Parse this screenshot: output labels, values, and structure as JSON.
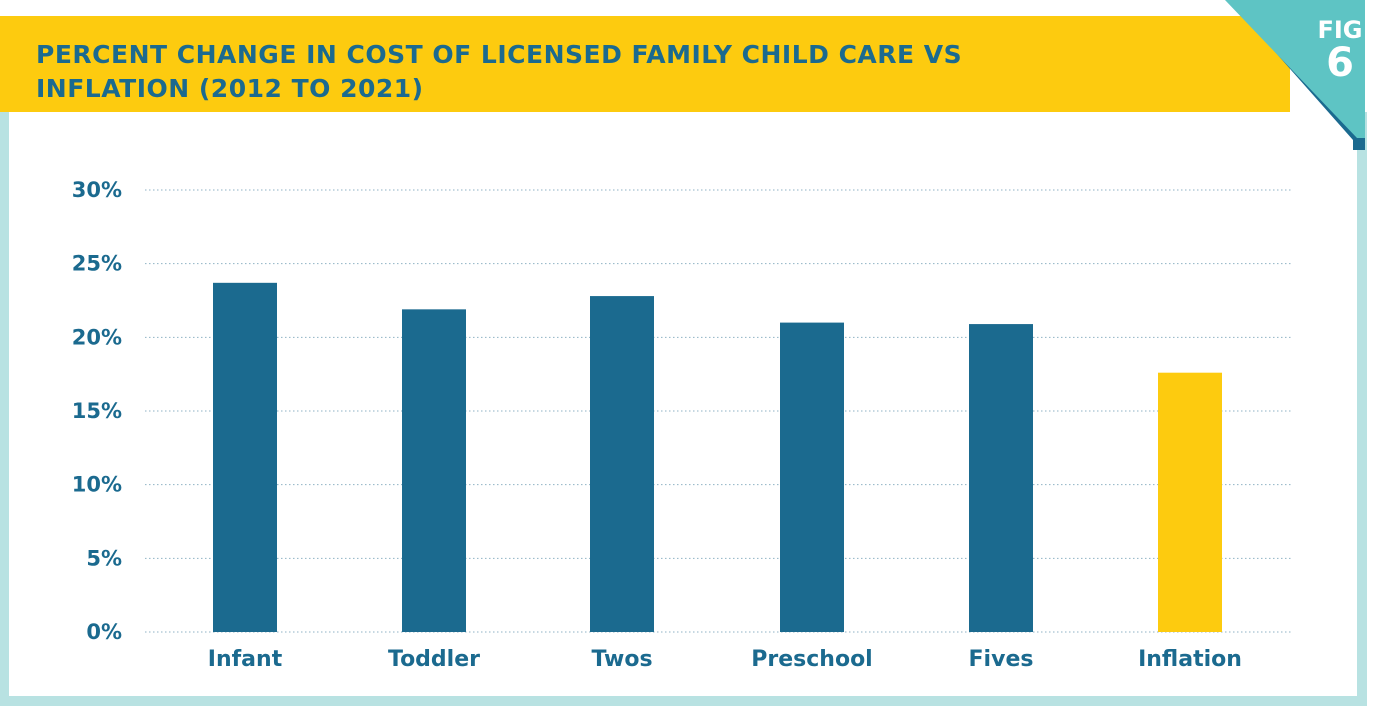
{
  "figure": {
    "label": "FIG",
    "number": "6"
  },
  "colors": {
    "banner": "#fdcb0f",
    "title_text": "#1b6a8f",
    "tab": "#5ec4c4",
    "tab_shadow": "#1b6a8f",
    "frame": "#b8e2e2",
    "bar_primary": "#1b6a8f",
    "bar_highlight": "#fdcb0f",
    "grid": "#8fb2c4"
  },
  "chart_data": {
    "type": "bar",
    "title": "PERCENT CHANGE IN COST OF LICENSED FAMILY CHILD CARE VS INFLATION (2012 TO 2021)",
    "xlabel": "",
    "ylabel": "",
    "categories": [
      "Infant",
      "Toddler",
      "Twos",
      "Preschool",
      "Fives",
      "Inflation"
    ],
    "values": [
      23.7,
      21.9,
      22.8,
      21.0,
      20.9,
      17.6
    ],
    "highlight_category": "Inflation",
    "ylim": [
      0,
      30
    ],
    "yticks": [
      0,
      5,
      10,
      15,
      20,
      25,
      30
    ],
    "ytick_labels": [
      "0%",
      "5%",
      "10%",
      "15%",
      "20%",
      "25%",
      "30%"
    ],
    "grid": true,
    "legend": "none"
  }
}
